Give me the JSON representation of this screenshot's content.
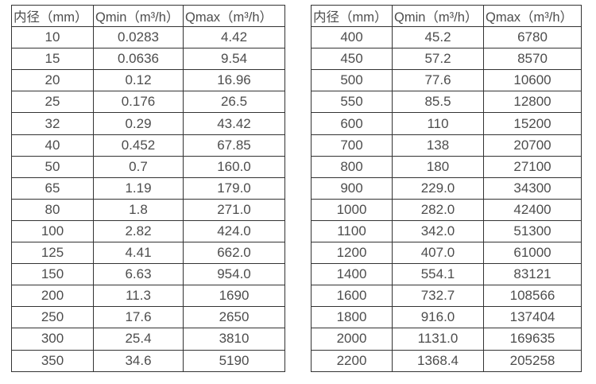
{
  "colors": {
    "border": "#333333",
    "text": "#4d4d4d",
    "background": "#ffffff"
  },
  "left_table": {
    "headers": [
      "内径（mm）",
      "Qmin（m³/h）",
      "Qmax（m³/h）"
    ],
    "rows": [
      [
        "10",
        "0.0283",
        "4.42"
      ],
      [
        "15",
        "0.0636",
        "9.54"
      ],
      [
        "20",
        "0.12",
        "16.96"
      ],
      [
        "25",
        "0.176",
        "26.5"
      ],
      [
        "32",
        "0.29",
        "43.42"
      ],
      [
        "40",
        "0.452",
        "67.85"
      ],
      [
        "50",
        "0.7",
        "160.0"
      ],
      [
        "65",
        "1.19",
        "179.0"
      ],
      [
        "80",
        "1.8",
        "271.0"
      ],
      [
        "100",
        "2.82",
        "424.0"
      ],
      [
        "125",
        "4.41",
        "662.0"
      ],
      [
        "150",
        "6.63",
        "954.0"
      ],
      [
        "200",
        "11.3",
        "1690"
      ],
      [
        "250",
        "17.6",
        "2650"
      ],
      [
        "300",
        "25.4",
        "3810"
      ],
      [
        "350",
        "34.6",
        "5190"
      ]
    ]
  },
  "right_table": {
    "headers": [
      "内径（mm）",
      "Qmin（m³/h）",
      "Qmax（m³/h）"
    ],
    "rows": [
      [
        "400",
        "45.2",
        "6780"
      ],
      [
        "450",
        "57.2",
        "8570"
      ],
      [
        "500",
        "77.6",
        "10600"
      ],
      [
        "550",
        "85.5",
        "12800"
      ],
      [
        "600",
        "110",
        "15200"
      ],
      [
        "700",
        "138",
        "20700"
      ],
      [
        "800",
        "180",
        "27100"
      ],
      [
        "900",
        "229.0",
        "34300"
      ],
      [
        "1000",
        "282.0",
        "42400"
      ],
      [
        "1100",
        "342.0",
        "51300"
      ],
      [
        "1200",
        "407.0",
        "61000"
      ],
      [
        "1400",
        "554.1",
        "83121"
      ],
      [
        "1600",
        "732.7",
        "108566"
      ],
      [
        "1800",
        "916.0",
        "137404"
      ],
      [
        "2000",
        "1131.0",
        "169635"
      ],
      [
        "2200",
        "1368.4",
        "205258"
      ]
    ]
  }
}
